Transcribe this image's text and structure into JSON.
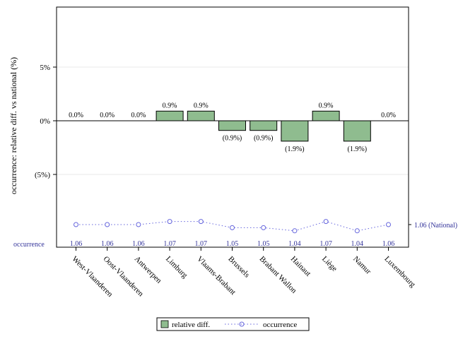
{
  "chart_data": {
    "type": "bar",
    "ylabel": "occurrence: relative diff. vs national (%)",
    "ylim": [
      -10.5,
      10.5
    ],
    "yticks": [
      {
        "value": 5,
        "label": "5%"
      },
      {
        "value": 0,
        "label": "0%"
      },
      {
        "value": -5,
        "label": "(5%)"
      }
    ],
    "categories": [
      "West-Vlaanderen",
      "Oost-Vlaanderen",
      "Antwerpen",
      "Limburg",
      "Vlaams-Brabant",
      "Brussels",
      "Brabant Wallon",
      "Hainaut",
      "Liège",
      "Namur",
      "Luxembourg"
    ],
    "series": [
      {
        "name": "relative diff.",
        "values": [
          0.0,
          0.0,
          0.0,
          0.9,
          0.9,
          -0.9,
          -0.9,
          -1.9,
          0.9,
          -1.9,
          0.0
        ],
        "labels": [
          "0.0%",
          "0.0%",
          "0.0%",
          "0.9%",
          "0.9%",
          "(0.9%)",
          "(0.9%)",
          "(1.9%)",
          "0.9%",
          "(1.9%)",
          "0.0%"
        ],
        "color": "#8fbc8f"
      },
      {
        "name": "occurrence",
        "values": [
          1.06,
          1.06,
          1.06,
          1.07,
          1.07,
          1.05,
          1.05,
          1.04,
          1.07,
          1.04,
          1.06
        ],
        "labels": [
          "1.06",
          "1.06",
          "1.06",
          "1.07",
          "1.07",
          "1.05",
          "1.05",
          "1.04",
          "1.07",
          "1.04",
          "1.06"
        ],
        "color": "#6666dd"
      }
    ],
    "occurrence_axis_label": "occurrence",
    "national_reference": {
      "value": 1.06,
      "label": "1.06 (National)"
    },
    "legend": {
      "placement": "bottom",
      "items": [
        "relative diff.",
        "occurrence"
      ]
    },
    "grid": true
  },
  "colors": {
    "bar_fill": "#8fbc8f",
    "occurrence": "#6666dd",
    "occurrence_text": "#33339a",
    "grid": "#e8e8e8"
  }
}
